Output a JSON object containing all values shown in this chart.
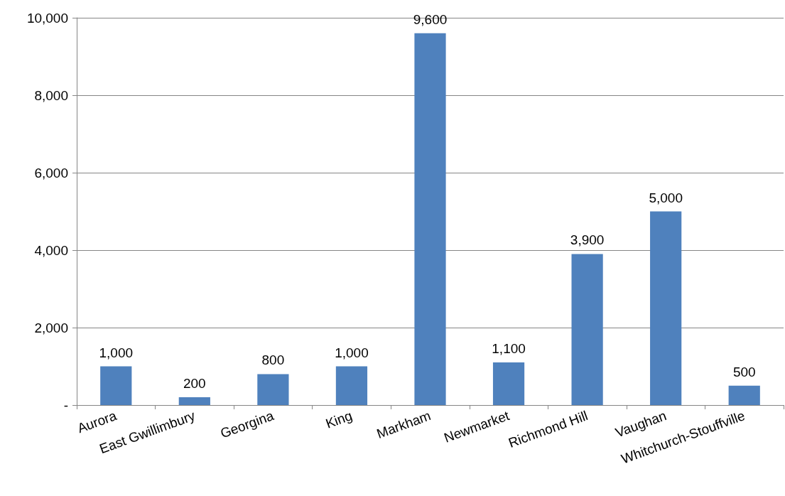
{
  "chart_data": {
    "type": "bar",
    "categories": [
      "Aurora",
      "East Gwillimbury",
      "Georgina",
      "King",
      "Markham",
      "Newmarket",
      "Richmond Hill",
      "Vaughan",
      "Whitchurch-Stouffville"
    ],
    "values": [
      1000,
      200,
      800,
      1000,
      9600,
      1100,
      3900,
      5000,
      500
    ],
    "value_labels": [
      "1,000",
      "200",
      "800",
      "1,000",
      "9,600",
      "1,100",
      "3,900",
      "5,000",
      "500"
    ],
    "color": "#4f81bd",
    "ylim": [
      0,
      10000
    ],
    "yticks": [
      {
        "value": 0,
        "label": "-"
      },
      {
        "value": 2000,
        "label": "2,000"
      },
      {
        "value": 4000,
        "label": "4,000"
      },
      {
        "value": 6000,
        "label": "6,000"
      },
      {
        "value": 8000,
        "label": "8,000"
      },
      {
        "value": 10000,
        "label": "10,000"
      }
    ],
    "grid": "y"
  }
}
